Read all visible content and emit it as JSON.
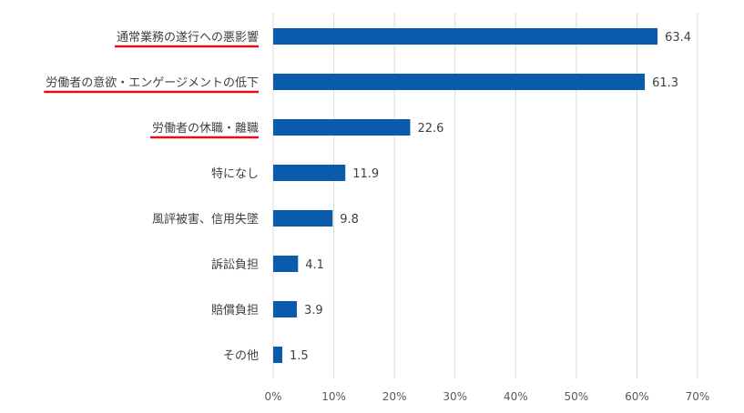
{
  "chart_data": {
    "type": "bar",
    "orientation": "horizontal",
    "categories": [
      "通常業務の遂行への悪影響",
      "労働者の意欲・エンゲージメントの低下",
      "労働者の休職・離職",
      "特になし",
      "風評被害、信用失墜",
      "訴訟負担",
      "賠償負担",
      "その他"
    ],
    "values": [
      63.4,
      61.3,
      22.6,
      11.9,
      9.8,
      4.1,
      3.9,
      1.5
    ],
    "x_ticks": [
      "0%",
      "10%",
      "20%",
      "30%",
      "40%",
      "50%",
      "60%",
      "70%"
    ],
    "xlim": [
      0,
      70
    ],
    "highlighted": [
      0,
      1,
      2
    ],
    "title": "",
    "xlabel": "",
    "ylabel": "",
    "grid": true,
    "legend": "none",
    "colors": {
      "bar": "#0a5bab",
      "highlight_underline": "#e0101a",
      "grid": "#d9d9d9"
    }
  }
}
